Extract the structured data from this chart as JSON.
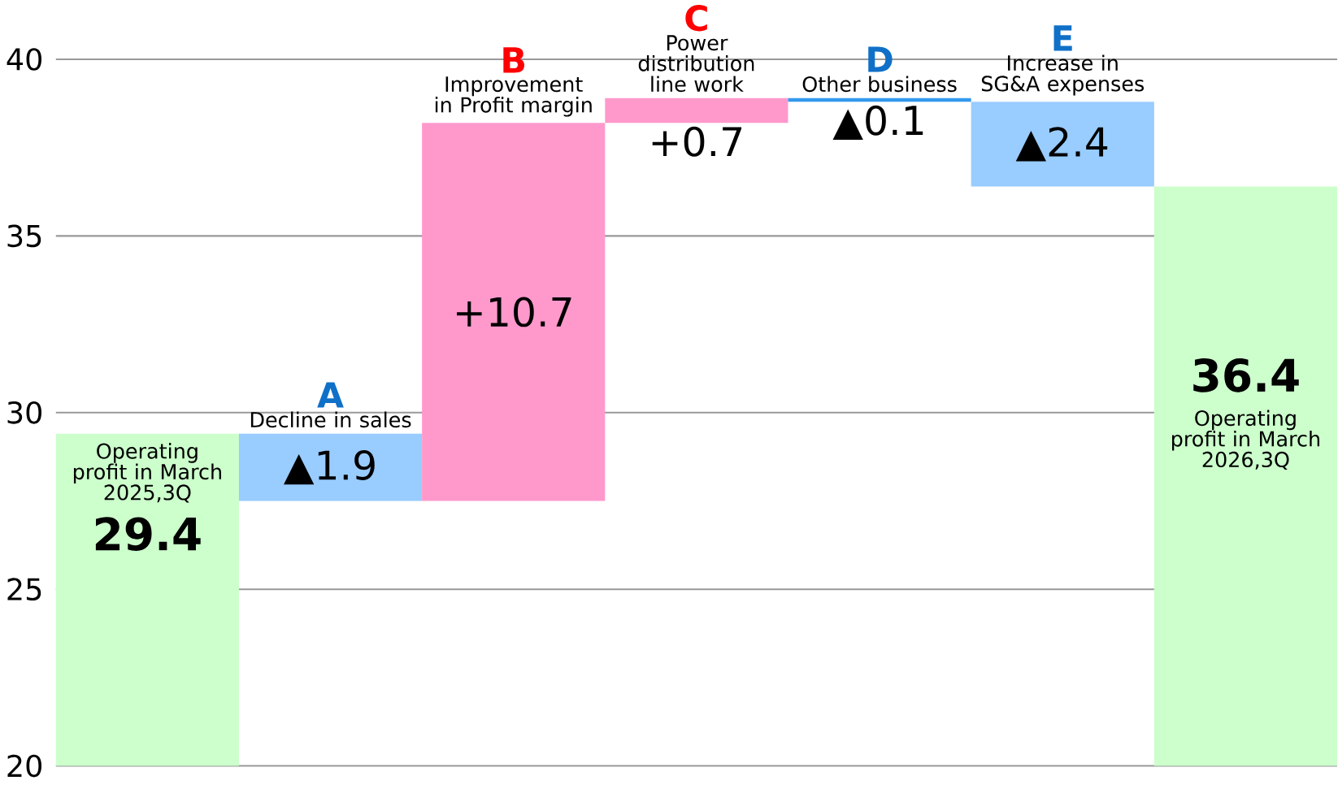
{
  "chart_data": {
    "type": "bar",
    "categories": [
      null,
      null,
      null,
      null,
      null,
      null,
      null
    ],
    "values": [
      29.4,
      -1.9,
      10.7,
      0.7,
      -0.1,
      -2.4,
      36.4
    ],
    "base": [
      null,
      29.4,
      27.5,
      38.2,
      38.9,
      38.8,
      null
    ],
    "colors": [
      "#ccffcc",
      "#99ccff",
      "#ff99cc",
      "#ff99cc",
      "#3399ee",
      "#99ccff",
      "#ccffcc"
    ],
    "value_labels": [
      "29.4",
      "▲1.9",
      "+10.7",
      "+0.7",
      "▲0.1",
      "▲2.4",
      "36.4"
    ],
    "ylim": [
      20,
      40
    ],
    "yticks": [
      20,
      25,
      30,
      35,
      40
    ],
    "grid": "y",
    "annotations": [
      "A",
      "Decline in sales",
      "B",
      "Improvement in Profit margin",
      "C",
      "Power distribution line work",
      "D",
      "Other business",
      "E",
      "Increase in SG&A expenses",
      "Operating profit in March 2025,3Q",
      "Operating profit in March 2026,3Q"
    ]
  }
}
